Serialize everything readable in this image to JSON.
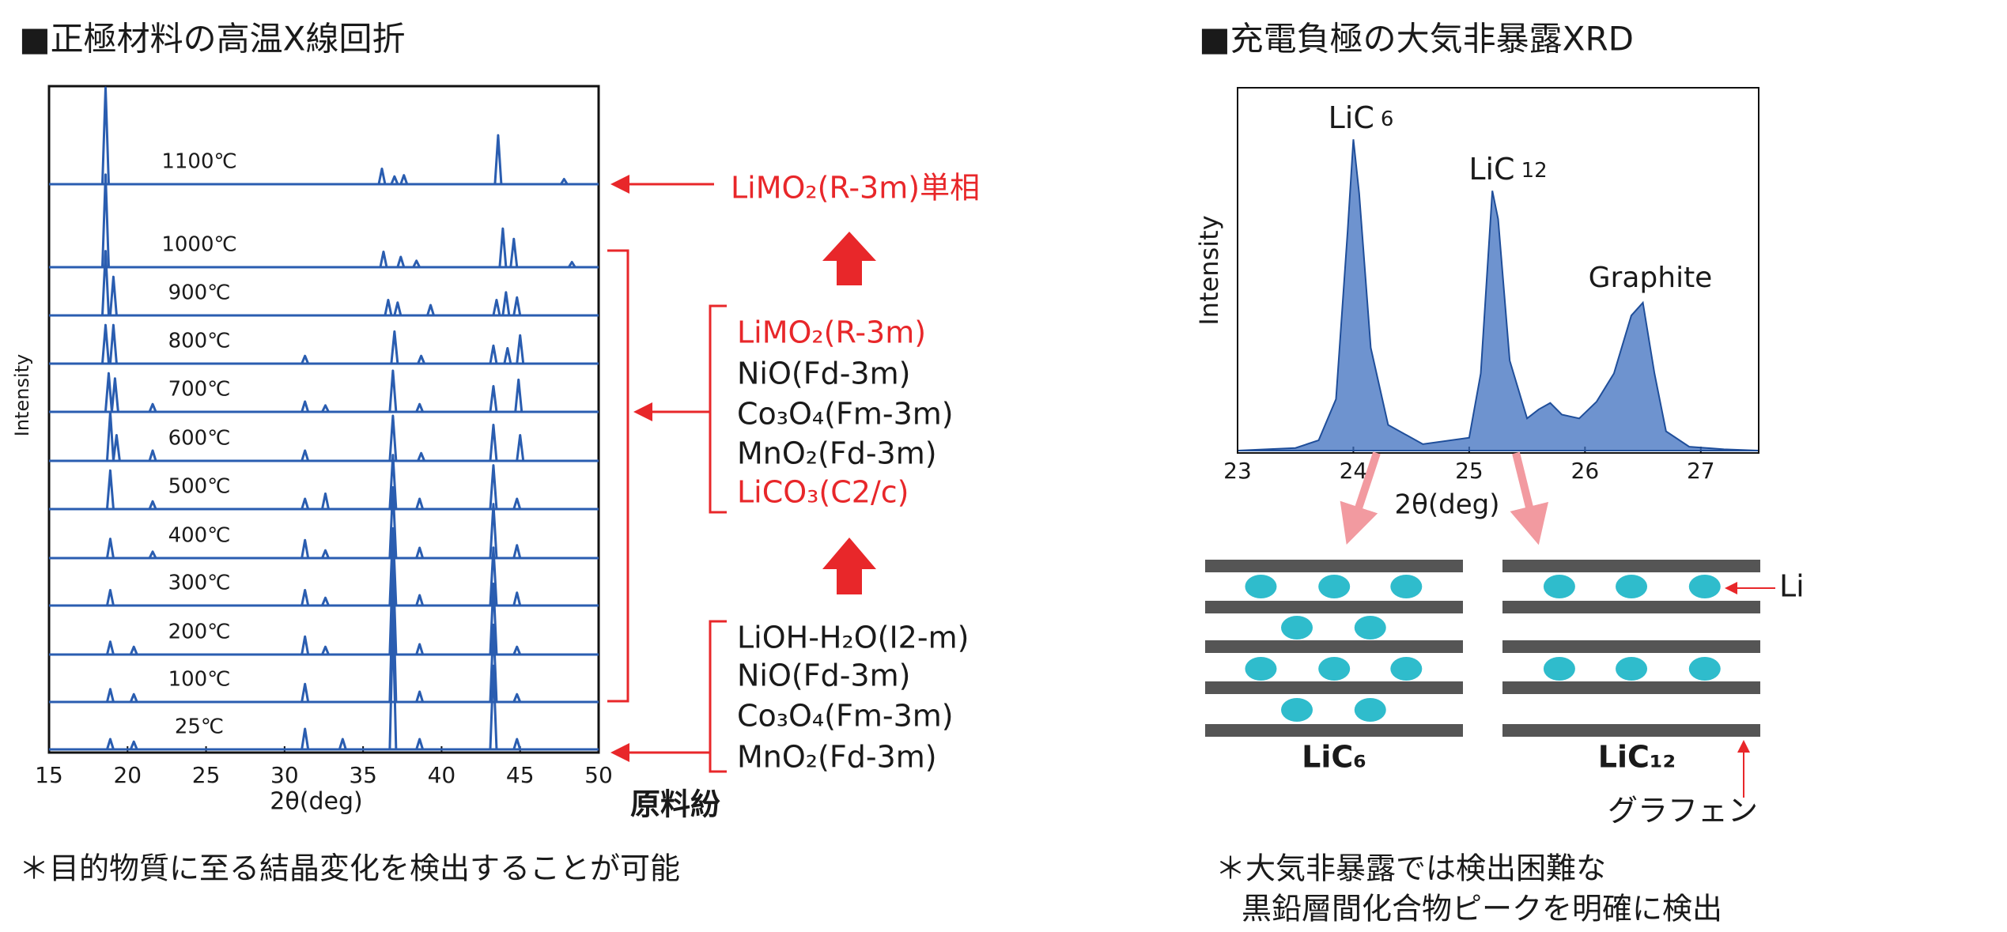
{
  "chart_data": [
    {
      "type": "xrd-stack",
      "title": "■正極材料の高温X線回折",
      "xlabel": "2θ(deg)",
      "ylabel": "Intensity",
      "xlim": [
        15,
        50
      ],
      "xticks": [
        15,
        20,
        25,
        30,
        35,
        40,
        45,
        50
      ],
      "color": "#2a5db0",
      "series": [
        {
          "name": "1100℃",
          "x": [
            18.6,
            36.2,
            37.0,
            37.6,
            43.6,
            47.8
          ],
          "values": [
            75,
            12,
            6,
            7,
            38,
            4
          ]
        },
        {
          "name": "1000℃",
          "x": [
            18.6,
            36.3,
            37.4,
            38.4,
            43.9,
            44.6,
            48.3
          ],
          "values": [
            72,
            12,
            8,
            5,
            30,
            22,
            4
          ]
        },
        {
          "name": "900℃",
          "x": [
            18.6,
            19.1,
            36.6,
            37.2,
            39.3,
            43.5,
            44.1,
            44.8
          ],
          "values": [
            50,
            30,
            12,
            10,
            8,
            12,
            18,
            14
          ]
        },
        {
          "name": "800℃",
          "x": [
            18.6,
            19.1,
            31.3,
            37.0,
            38.7,
            43.3,
            44.2,
            45.0
          ],
          "values": [
            30,
            30,
            6,
            25,
            6,
            14,
            12,
            22
          ]
        },
        {
          "name": "700℃",
          "x": [
            18.8,
            19.2,
            21.6,
            31.3,
            32.6,
            36.9,
            38.6,
            43.3,
            44.9
          ],
          "values": [
            30,
            26,
            6,
            8,
            5,
            32,
            6,
            20,
            25
          ]
        },
        {
          "name": "600℃",
          "x": [
            18.9,
            19.3,
            21.6,
            31.3,
            36.9,
            38.7,
            43.3,
            45.0
          ],
          "values": [
            38,
            20,
            8,
            8,
            35,
            6,
            28,
            20
          ]
        },
        {
          "name": "500℃",
          "x": [
            18.9,
            21.6,
            31.3,
            32.6,
            36.9,
            38.6,
            43.3,
            44.8
          ],
          "values": [
            30,
            6,
            8,
            12,
            42,
            8,
            34,
            8
          ]
        },
        {
          "name": "400℃",
          "x": [
            18.9,
            21.6,
            31.3,
            32.6,
            36.9,
            38.6,
            43.3,
            44.8
          ],
          "values": [
            15,
            5,
            14,
            6,
            55,
            8,
            42,
            10
          ]
        },
        {
          "name": "300℃",
          "x": [
            18.9,
            31.3,
            32.6,
            36.9,
            38.6,
            43.3,
            44.8
          ],
          "values": [
            12,
            12,
            6,
            60,
            8,
            45,
            10
          ]
        },
        {
          "name": "200℃",
          "x": [
            18.9,
            20.4,
            31.3,
            32.6,
            36.9,
            38.6,
            43.3,
            44.8
          ],
          "values": [
            10,
            6,
            14,
            6,
            75,
            8,
            55,
            6
          ]
        },
        {
          "name": "100℃",
          "x": [
            18.9,
            20.4,
            31.3,
            36.9,
            38.6,
            43.3,
            44.8
          ],
          "values": [
            10,
            6,
            14,
            90,
            8,
            60,
            6
          ]
        },
        {
          "name": "25℃",
          "x": [
            18.9,
            20.4,
            31.3,
            33.7,
            36.9,
            38.6,
            43.3,
            44.8
          ],
          "values": [
            8,
            6,
            16,
            8,
            100,
            8,
            65,
            8
          ]
        }
      ]
    },
    {
      "type": "area",
      "title": "■充電負極の大気非暴露XRD",
      "xlabel": "2θ(deg)",
      "ylabel": "Intensity",
      "xlim": [
        23,
        27.5
      ],
      "xticks": [
        23,
        24,
        25,
        26,
        27
      ],
      "color": "#3d6fbf",
      "x": [
        23.0,
        23.5,
        23.7,
        23.85,
        23.95,
        24.0,
        24.05,
        24.15,
        24.3,
        24.6,
        25.0,
        25.1,
        25.2,
        25.25,
        25.35,
        25.5,
        25.6,
        25.7,
        25.8,
        25.95,
        26.1,
        26.25,
        26.4,
        26.5,
        26.6,
        26.7,
        26.9,
        27.2,
        27.5
      ],
      "values": [
        0,
        2,
        8,
        40,
        170,
        242,
        200,
        80,
        20,
        5,
        10,
        60,
        202,
        180,
        70,
        25,
        32,
        37,
        28,
        25,
        38,
        60,
        105,
        115,
        60,
        15,
        3,
        1,
        0
      ],
      "annotations": [
        {
          "text": "LiC",
          "sub": "6"
        },
        {
          "text": "LiC",
          "sub": "12"
        },
        {
          "text": "Graphite"
        }
      ]
    }
  ],
  "phases": {
    "single": "LiMO₂(R-3m)単相",
    "intermediate": [
      {
        "text": "LiMO₂(R-3m)",
        "color": "#e8272a"
      },
      {
        "text": "NiO(Fd-3m)",
        "color": "#1a1a1a"
      },
      {
        "text": "Co₃O₄(Fm-3m)",
        "color": "#1a1a1a"
      },
      {
        "text": "MnO₂(Fd-3m)",
        "color": "#1a1a1a"
      },
      {
        "text": "LiCO₃(C2/c)",
        "color": "#e8272a"
      }
    ],
    "raw": [
      "LiOH-H₂O(I2-m)",
      "NiO(Fd-3m)",
      "Co₃O₄(Fm-3m)",
      "MnO₂(Fd-3m)"
    ],
    "raw_label": "原料紛"
  },
  "structure": {
    "li_label": "Li",
    "lic6": "LiC₆",
    "lic12": "LiC₁₂",
    "graphene": "グラフェン"
  },
  "notes": {
    "left": "＊目的物質に至る結晶変化を検出することが可能",
    "right": [
      "＊大気非暴露では検出困難な",
      "黒鉛層間化合物ピークを明確に検出"
    ]
  }
}
